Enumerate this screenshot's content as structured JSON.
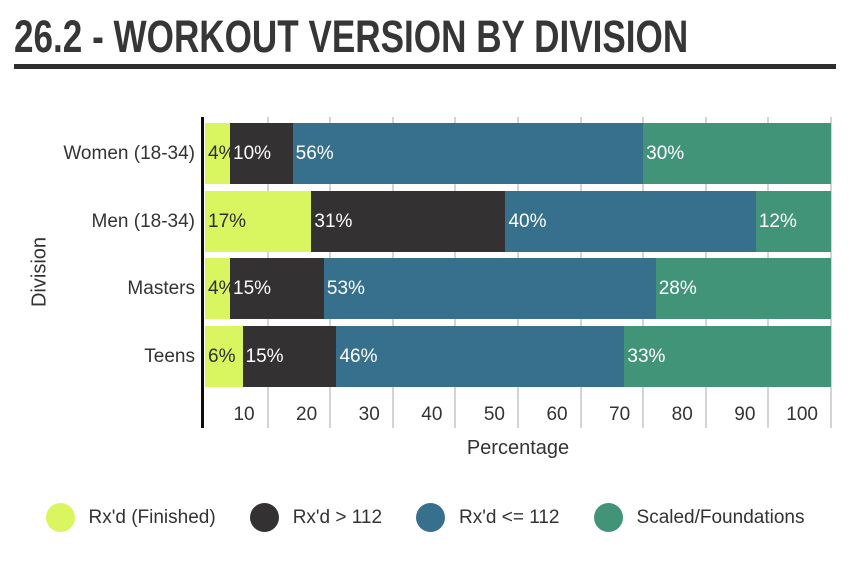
{
  "title": "26.2 - WORKOUT VERSION BY DIVISION",
  "chart_data": {
    "type": "bar",
    "orientation": "horizontal",
    "stacked": true,
    "title": "26.2 - WORKOUT VERSION BY DIVISION",
    "categories": [
      "Women (18-34)",
      "Men (18-34)",
      "Masters",
      "Teens"
    ],
    "series": [
      {
        "name": "Rx'd (Finished)",
        "color": "#d9f55f",
        "label_color": "#2f2f2f",
        "values": [
          4,
          17,
          4,
          6
        ]
      },
      {
        "name": "Rx'd > 112",
        "color": "#333132",
        "label_color": "#ffffff",
        "values": [
          10,
          31,
          15,
          15
        ]
      },
      {
        "name": "Rx'd <= 112",
        "color": "#36708c",
        "label_color": "#ffffff",
        "values": [
          56,
          40,
          53,
          46
        ]
      },
      {
        "name": "Scaled/Foundations",
        "color": "#429478",
        "label_color": "#ffffff",
        "values": [
          30,
          12,
          28,
          33
        ]
      }
    ],
    "xlabel": "Percentage",
    "ylabel": "Division",
    "xlim": [
      0,
      100
    ],
    "xticks": [
      10,
      20,
      30,
      40,
      50,
      60,
      70,
      80,
      90,
      100
    ],
    "value_suffix": "%",
    "grid": true,
    "legend_position": "bottom"
  },
  "styles": {
    "background": "#ffffff",
    "grid_color": "#d4d4d4",
    "axis_color": "#0d0d0d",
    "text_color": "#333333",
    "rule_color": "#2e2e2e"
  }
}
